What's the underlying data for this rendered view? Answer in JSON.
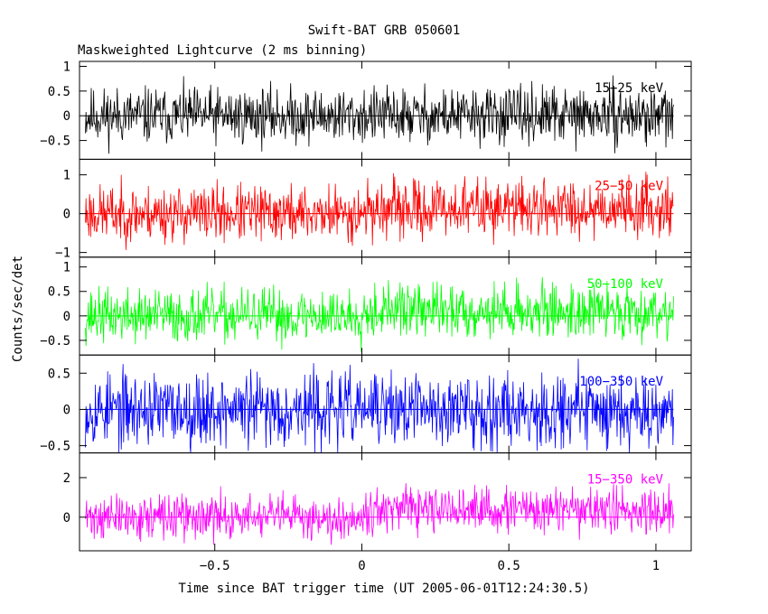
{
  "title": "Swift-BAT GRB 050601",
  "subtitle": "Maskweighted Lightcurve (2 ms binning)",
  "xlabel": "Time since BAT trigger time (UT 2005-06-01T12:24:30.5)",
  "ylabel": "Counts/sec/det",
  "chart_data": {
    "type": "line",
    "title": "Swift-BAT GRB 050601",
    "subtitle": "Maskweighted Lightcurve (2 ms binning)",
    "xlabel": "Time since BAT trigger time (UT 2005-06-01T12:24:30.5)",
    "ylabel": "Counts/sec/det",
    "xlim": [
      -0.96,
      1.12
    ],
    "x_ticks": [
      -0.5,
      0,
      0.5,
      1
    ],
    "x_tick_labels": [
      "−0.5",
      "0",
      "0.5",
      "1"
    ],
    "x_start": -0.94,
    "x_end": 1.06,
    "bin_width": 0.002,
    "grid": false,
    "panels": [
      {
        "name": "15−25 keV",
        "color": "#000000",
        "ylim": [
          -0.88,
          1.1
        ],
        "y_ticks": [
          -0.5,
          0,
          0.5,
          1
        ],
        "y_tick_labels": [
          "−0.5",
          "0",
          "0.5",
          "1"
        ],
        "noise_amplitude": 0.28,
        "trend": [
          0,
          0,
          0
        ],
        "seed": 11
      },
      {
        "name": "25−50 keV",
        "color": "#ff0000",
        "ylim": [
          -1.12,
          1.4
        ],
        "y_ticks": [
          -1,
          0,
          1
        ],
        "y_tick_labels": [
          "−1",
          "0",
          "1"
        ],
        "noise_amplitude": 0.36,
        "trend": [
          0,
          0.1,
          0.15
        ],
        "seed": 23
      },
      {
        "name": "50−100 keV",
        "color": "#00ff00",
        "ylim": [
          -0.8,
          1.2
        ],
        "y_ticks": [
          -0.5,
          0,
          0.5,
          1
        ],
        "y_tick_labels": [
          "−0.5",
          "0",
          "0.5",
          "1"
        ],
        "noise_amplitude": 0.27,
        "trend": [
          0,
          0.12,
          0.1
        ],
        "seed": 37
      },
      {
        "name": "100−350 keV",
        "color": "#0000ff",
        "ylim": [
          -0.6,
          0.75
        ],
        "y_ticks": [
          -0.5,
          0,
          0.5
        ],
        "y_tick_labels": [
          "−0.5",
          "0",
          "0.5"
        ],
        "noise_amplitude": 0.25,
        "trend": [
          0,
          0,
          0
        ],
        "seed": 53
      },
      {
        "name": "15−350 keV",
        "color": "#ff00ff",
        "ylim": [
          -1.7,
          3.25
        ],
        "y_ticks": [
          0,
          2
        ],
        "y_tick_labels": [
          "0",
          "2"
        ],
        "noise_amplitude": 0.55,
        "trend": [
          0,
          0.35,
          0.35
        ],
        "seed": 71
      }
    ]
  }
}
